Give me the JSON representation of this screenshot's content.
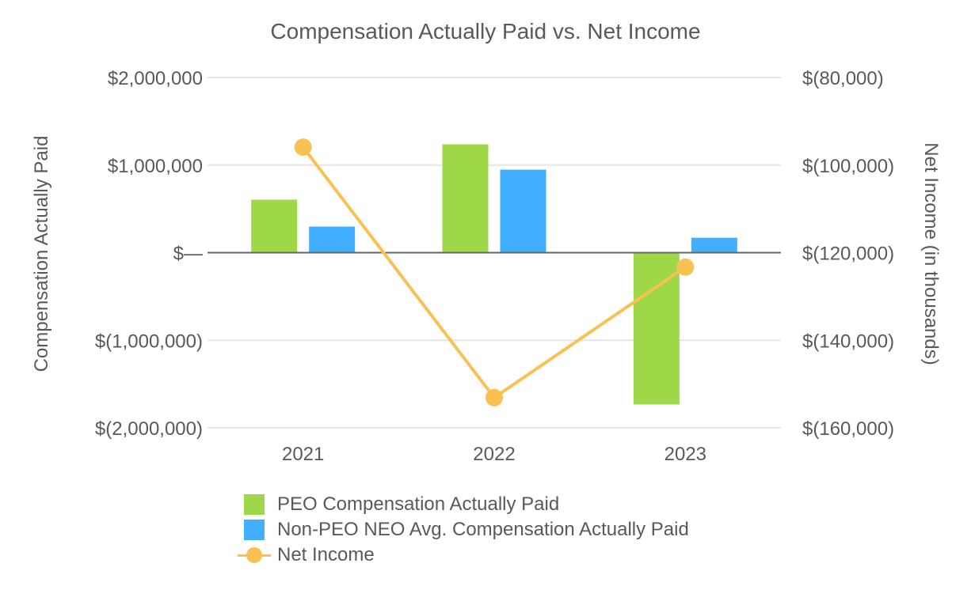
{
  "chart_data": {
    "type": "bar",
    "title": "Compensation Actually Paid vs. Net Income",
    "categories": [
      "2021",
      "2022",
      "2023"
    ],
    "ylabel": "Compensation Actually Paid",
    "y2label": "Net Income (in thousands)",
    "ylim": [
      -2000000,
      2000000
    ],
    "y2lim": [
      -160000,
      -80000
    ],
    "yticks": [
      "$2,000,000",
      "$1,000,000",
      "$—",
      "$(1,000,000)",
      "$(2,000,000)"
    ],
    "y2ticks": [
      "$(80,000)",
      "$(100,000)",
      "$(120,000)",
      "$(140,000)",
      "$(160,000)"
    ],
    "grid": true,
    "legend_position": "bottom",
    "series": [
      {
        "name": "PEO Compensation Actually Paid",
        "type": "bar",
        "axis": "left",
        "color": "#9ED848",
        "values": [
          605000,
          1237000,
          -1734000
        ]
      },
      {
        "name": "Non-PEO NEO Avg. Compensation Actually Paid",
        "type": "bar",
        "axis": "left",
        "color": "#42AEFF",
        "values": [
          298000,
          948000,
          170000
        ]
      },
      {
        "name": "Net Income",
        "type": "line",
        "axis": "right",
        "color": "#F9C152",
        "values": [
          -95900,
          -153100,
          -123300
        ]
      }
    ]
  },
  "legend": {
    "items": [
      {
        "label": "PEO Compensation Actually Paid",
        "color": "#9ED848"
      },
      {
        "label": "Non-PEO NEO Avg. Compensation Actually Paid",
        "color": "#42AEFF"
      },
      {
        "label": "Net Income",
        "color": "#F9C152"
      }
    ]
  }
}
